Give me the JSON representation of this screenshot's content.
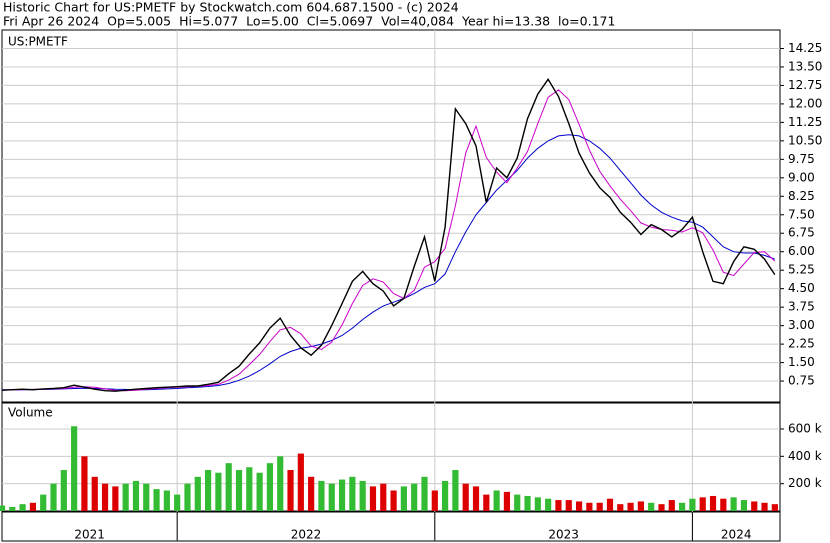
{
  "chart_data": {
    "type": "stock",
    "title": "Historic Chart for US:PMETF by Stockwatch.com 604.687.1500 - (c) 2024",
    "subtitle": "Fri Apr 26 2024  Op=5.005  Hi=5.077  Lo=5.00  Cl=5.0697  Vol=40,084  Year hi=13.38  lo=0.171",
    "symbol": "US:PMETF",
    "xlim": [
      2021.32,
      2024.34
    ],
    "xticks": [
      2021,
      2022,
      2023,
      2024
    ],
    "x": [
      2021.32,
      2021.36,
      2021.4,
      2021.44,
      2021.48,
      2021.52,
      2021.56,
      2021.6,
      2021.64,
      2021.68,
      2021.72,
      2021.76,
      2021.8,
      2021.84,
      2021.88,
      2021.92,
      2021.96,
      2022.0,
      2022.04,
      2022.08,
      2022.12,
      2022.16,
      2022.2,
      2022.24,
      2022.28,
      2022.32,
      2022.36,
      2022.4,
      2022.44,
      2022.48,
      2022.52,
      2022.56,
      2022.6,
      2022.64,
      2022.68,
      2022.72,
      2022.76,
      2022.8,
      2022.84,
      2022.88,
      2022.92,
      2022.96,
      2023.0,
      2023.04,
      2023.08,
      2023.12,
      2023.16,
      2023.2,
      2023.24,
      2023.28,
      2023.32,
      2023.36,
      2023.4,
      2023.44,
      2023.48,
      2023.52,
      2023.56,
      2023.6,
      2023.64,
      2023.68,
      2023.72,
      2023.76,
      2023.8,
      2023.84,
      2023.88,
      2023.92,
      2023.96,
      2024.0,
      2024.04,
      2024.08,
      2024.12,
      2024.16,
      2024.2,
      2024.24,
      2024.28,
      2024.32
    ],
    "ylim": [
      -0.1,
      15.0
    ],
    "yticks": [
      0.75,
      {
        "value": 1.5,
        "label": "1.50"
      },
      2.25,
      {
        "value": 3,
        "label": "3.00"
      },
      3.75,
      {
        "value": 4.5,
        "label": "4.50"
      },
      5.25,
      {
        "value": 6,
        "label": "6.00"
      },
      6.75,
      {
        "value": 7.5,
        "label": "7.50"
      },
      8.25,
      {
        "value": 9,
        "label": "9.00"
      },
      9.75,
      {
        "value": 10.5,
        "label": "10.50"
      },
      11.25,
      {
        "value": 12,
        "label": "12.00"
      },
      12.75,
      {
        "value": 13.5,
        "label": "13.50"
      },
      14.25
    ],
    "grid": true,
    "series": [
      {
        "color": "#000000",
        "values": [
          0.38,
          0.4,
          0.42,
          0.4,
          0.43,
          0.45,
          0.48,
          0.58,
          0.5,
          0.42,
          0.36,
          0.34,
          0.38,
          0.42,
          0.45,
          0.48,
          0.5,
          0.52,
          0.55,
          0.55,
          0.62,
          0.7,
          1.05,
          1.35,
          1.85,
          2.3,
          2.9,
          3.3,
          2.6,
          2.1,
          1.8,
          2.2,
          3.0,
          3.9,
          4.8,
          5.2,
          4.7,
          4.4,
          3.8,
          4.1,
          5.4,
          6.6,
          4.8,
          7.0,
          11.8,
          11.2,
          10.3,
          8.0,
          9.4,
          9.0,
          9.8,
          11.4,
          12.4,
          13.0,
          12.3,
          11.2,
          10.0,
          9.2,
          8.6,
          8.2,
          7.6,
          7.2,
          6.7,
          7.1,
          6.9,
          6.6,
          6.9,
          7.4,
          6.0,
          4.8,
          4.7,
          5.6,
          6.2,
          6.1,
          5.7,
          5.07
        ]
      },
      {
        "color": "#cc00cc",
        "values": [
          0.38,
          0.39,
          0.4,
          0.41,
          0.42,
          0.43,
          0.45,
          0.5,
          0.52,
          0.5,
          0.43,
          0.37,
          0.36,
          0.38,
          0.42,
          0.45,
          0.48,
          0.5,
          0.52,
          0.54,
          0.57,
          0.62,
          0.79,
          1.03,
          1.42,
          1.83,
          2.35,
          2.83,
          2.93,
          2.67,
          2.17,
          2.03,
          2.33,
          3.03,
          3.9,
          4.63,
          4.9,
          4.77,
          4.3,
          4.1,
          4.43,
          5.37,
          5.6,
          6.13,
          7.87,
          10.0,
          11.1,
          9.83,
          9.23,
          8.8,
          9.4,
          10.07,
          11.2,
          12.27,
          12.57,
          12.17,
          11.17,
          10.13,
          9.27,
          8.67,
          8.13,
          7.67,
          7.17,
          7.0,
          6.9,
          6.87,
          6.8,
          6.97,
          6.77,
          6.07,
          5.17,
          5.03,
          5.5,
          5.97,
          6.0,
          5.62
        ]
      },
      {
        "color": "#0000cc",
        "values": [
          0.4,
          0.4,
          0.4,
          0.4,
          0.41,
          0.42,
          0.43,
          0.45,
          0.46,
          0.45,
          0.44,
          0.42,
          0.41,
          0.4,
          0.4,
          0.41,
          0.43,
          0.45,
          0.48,
          0.5,
          0.53,
          0.57,
          0.65,
          0.78,
          0.95,
          1.18,
          1.45,
          1.75,
          1.95,
          2.08,
          2.15,
          2.25,
          2.4,
          2.6,
          2.9,
          3.25,
          3.55,
          3.8,
          3.95,
          4.1,
          4.3,
          4.55,
          4.7,
          5.1,
          6.0,
          6.8,
          7.5,
          8.0,
          8.5,
          8.9,
          9.3,
          9.8,
          10.2,
          10.5,
          10.7,
          10.75,
          10.7,
          10.5,
          10.2,
          9.8,
          9.3,
          8.8,
          8.3,
          7.9,
          7.6,
          7.4,
          7.25,
          7.2,
          7.0,
          6.6,
          6.2,
          6.0,
          5.95,
          5.95,
          5.85,
          5.7
        ]
      }
    ],
    "volume": {
      "label": "Volume",
      "up_color": "#33bb33",
      "down_color": "#dd0000",
      "ylim": [
        0,
        790000
      ],
      "yticks": [
        {
          "value": 200000,
          "label": "200 k"
        },
        {
          "value": 400000,
          "label": "400 k"
        },
        {
          "value": 600000,
          "label": "600 k"
        }
      ],
      "values": [
        40000,
        30000,
        50000,
        60000,
        120000,
        200000,
        300000,
        620000,
        400000,
        250000,
        200000,
        180000,
        200000,
        220000,
        200000,
        160000,
        150000,
        120000,
        200000,
        250000,
        300000,
        280000,
        350000,
        300000,
        320000,
        280000,
        350000,
        400000,
        300000,
        420000,
        250000,
        220000,
        200000,
        230000,
        250000,
        220000,
        180000,
        200000,
        150000,
        180000,
        200000,
        250000,
        150000,
        220000,
        300000,
        200000,
        180000,
        120000,
        150000,
        140000,
        120000,
        110000,
        100000,
        90000,
        80000,
        80000,
        70000,
        60000,
        60000,
        90000,
        50000,
        60000,
        70000,
        60000,
        50000,
        80000,
        60000,
        90000,
        100000,
        110000,
        90000,
        100000,
        80000,
        70000,
        60000,
        50000
      ]
    }
  }
}
